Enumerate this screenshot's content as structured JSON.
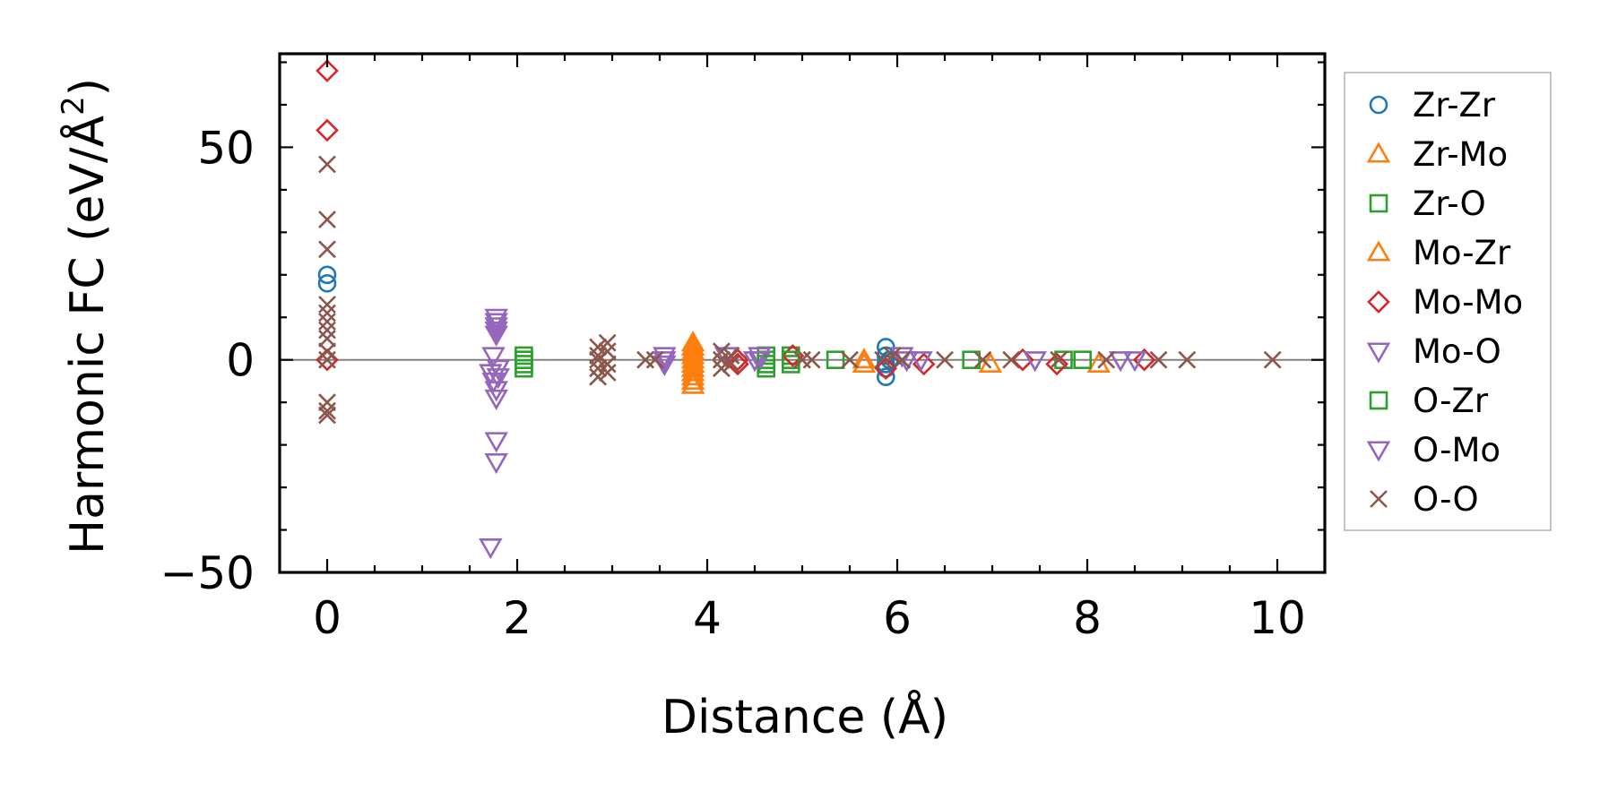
{
  "chart_data": {
    "type": "scatter",
    "title": "",
    "xlabel": "Distance (Å)",
    "ylabel_main": "Harmonic FC (eV/Å",
    "ylabel_sup": "2",
    "ylabel_end": ")",
    "xlim": [
      -0.5,
      10.5
    ],
    "ylim": [
      -50,
      72
    ],
    "xticks": [
      0,
      2,
      4,
      6,
      8,
      10
    ],
    "yticks": [
      -50,
      0,
      50
    ],
    "xtick_labels": [
      "0",
      "2",
      "4",
      "6",
      "8",
      "10"
    ],
    "ytick_labels": [
      "−50",
      "0",
      "50"
    ],
    "zero_line": true,
    "grid": false,
    "legend_position": "outside-right",
    "series": [
      {
        "name": "Zr-Zr",
        "marker": "circle",
        "color": "#1f77b4",
        "points": [
          [
            0,
            18
          ],
          [
            0,
            20
          ],
          [
            5.88,
            3
          ],
          [
            5.88,
            1
          ],
          [
            5.88,
            -1
          ],
          [
            5.88,
            -2
          ],
          [
            5.88,
            -4
          ],
          [
            5.92,
            0
          ]
        ]
      },
      {
        "name": "Zr-Mo",
        "marker": "triangle-up",
        "color": "#ff7f0e",
        "points": [
          [
            3.85,
            4
          ],
          [
            3.85,
            2
          ],
          [
            3.85,
            0
          ],
          [
            3.85,
            -2
          ],
          [
            3.85,
            -4
          ],
          [
            3.85,
            -6
          ],
          [
            5.65,
            0
          ],
          [
            5.65,
            -1
          ],
          [
            6.98,
            -1
          ],
          [
            8.12,
            -1
          ]
        ]
      },
      {
        "name": "Zr-O",
        "marker": "square",
        "color": "#2ca02c",
        "points": [
          [
            2.07,
            1
          ],
          [
            2.07,
            0
          ],
          [
            2.07,
            -2
          ],
          [
            4.62,
            1
          ],
          [
            4.62,
            0
          ],
          [
            4.62,
            -2
          ],
          [
            4.88,
            1
          ],
          [
            4.88,
            -1
          ],
          [
            5.35,
            0
          ],
          [
            6.78,
            0
          ],
          [
            7.75,
            0
          ],
          [
            7.95,
            0
          ]
        ]
      },
      {
        "name": "Mo-Zr",
        "marker": "triangle-up",
        "color": "#ff7f0e",
        "points": [
          [
            3.85,
            3
          ],
          [
            3.85,
            1
          ],
          [
            3.85,
            -1
          ],
          [
            3.85,
            -3
          ],
          [
            3.85,
            -5
          ]
        ]
      },
      {
        "name": "Mo-Mo",
        "marker": "diamond",
        "color": "#d62728",
        "points": [
          [
            0,
            68
          ],
          [
            0,
            54
          ],
          [
            0,
            0
          ],
          [
            4.32,
            0
          ],
          [
            4.32,
            -1
          ],
          [
            4.9,
            1
          ],
          [
            5.88,
            -2
          ],
          [
            6.28,
            -1
          ],
          [
            7.32,
            0
          ],
          [
            7.68,
            -1
          ],
          [
            8.6,
            0
          ]
        ]
      },
      {
        "name": "Mo-O",
        "marker": "triangle-down",
        "color": "#9467bd",
        "points": [
          [
            1.78,
            10
          ],
          [
            1.78,
            9
          ],
          [
            1.78,
            8
          ],
          [
            1.78,
            7
          ],
          [
            1.78,
            6
          ],
          [
            1.75,
            1
          ],
          [
            1.72,
            -3
          ],
          [
            1.75,
            -5
          ],
          [
            1.78,
            -7
          ],
          [
            1.78,
            -9
          ],
          [
            1.78,
            -19
          ],
          [
            1.78,
            -24
          ],
          [
            1.72,
            -44
          ],
          [
            3.55,
            1
          ],
          [
            3.55,
            0
          ],
          [
            4.2,
            1
          ],
          [
            4.55,
            1
          ],
          [
            4.55,
            0
          ],
          [
            6.05,
            1
          ],
          [
            6.25,
            0
          ],
          [
            7.45,
            0
          ],
          [
            8.35,
            0
          ],
          [
            8.5,
            0
          ]
        ]
      },
      {
        "name": "O-Zr",
        "marker": "square",
        "color": "#2ca02c",
        "points": [
          [
            2.07,
            -1
          ],
          [
            4.62,
            -1
          ],
          [
            4.88,
            0
          ]
        ]
      },
      {
        "name": "O-Mo",
        "marker": "triangle-down",
        "color": "#9467bd",
        "points": [
          [
            1.8,
            -2
          ],
          [
            1.8,
            -4
          ],
          [
            3.55,
            -1
          ],
          [
            4.5,
            0
          ],
          [
            6.1,
            0
          ]
        ]
      },
      {
        "name": "O-O",
        "marker": "x",
        "color": "#8c564b",
        "points": [
          [
            0,
            46
          ],
          [
            0,
            33
          ],
          [
            0,
            26
          ],
          [
            0,
            13
          ],
          [
            0,
            11
          ],
          [
            0,
            9
          ],
          [
            0,
            7
          ],
          [
            0,
            5
          ],
          [
            0,
            2
          ],
          [
            0,
            0
          ],
          [
            0,
            -10
          ],
          [
            0,
            -12
          ],
          [
            0,
            -13
          ],
          [
            2.85,
            3
          ],
          [
            2.85,
            1
          ],
          [
            2.85,
            0
          ],
          [
            2.85,
            -2
          ],
          [
            2.85,
            -4
          ],
          [
            2.95,
            4
          ],
          [
            2.95,
            2
          ],
          [
            2.95,
            -1
          ],
          [
            2.95,
            -3
          ],
          [
            3.35,
            0
          ],
          [
            3.45,
            0
          ],
          [
            4.15,
            2
          ],
          [
            4.15,
            0
          ],
          [
            4.15,
            -2
          ],
          [
            4.25,
            1
          ],
          [
            4.25,
            -1
          ],
          [
            5.0,
            0
          ],
          [
            5.1,
            0
          ],
          [
            5.5,
            0
          ],
          [
            5.85,
            0
          ],
          [
            5.95,
            1
          ],
          [
            6.05,
            0
          ],
          [
            6.5,
            0
          ],
          [
            6.9,
            0
          ],
          [
            7.2,
            0
          ],
          [
            7.7,
            0
          ],
          [
            8.2,
            0
          ],
          [
            8.75,
            0
          ],
          [
            9.05,
            0
          ],
          [
            9.95,
            0
          ]
        ]
      }
    ],
    "colors": {
      "zero_line": "#808080",
      "legend_border": "#b0b0b0"
    }
  }
}
